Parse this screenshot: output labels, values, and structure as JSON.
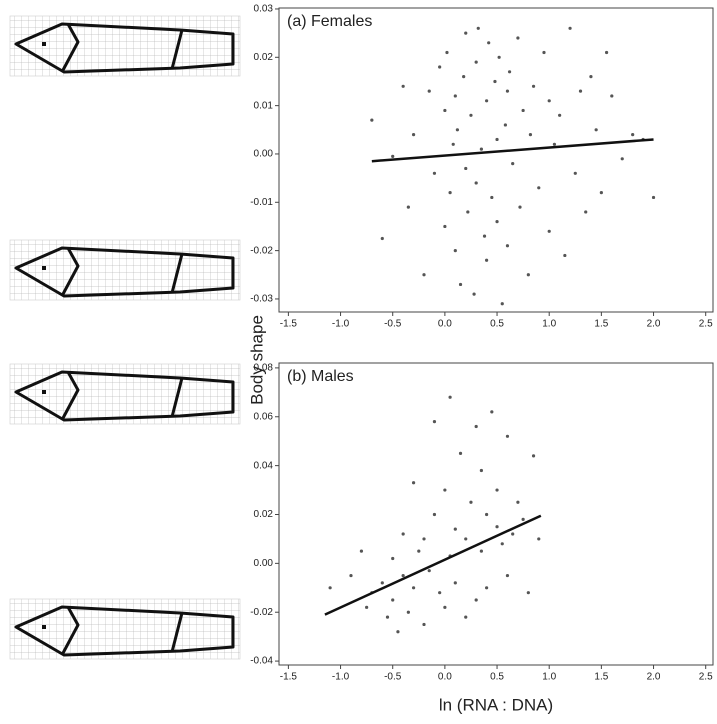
{
  "chart_data": [
    {
      "type": "scatter",
      "title": "(a)  Females",
      "y_label": "Body shape",
      "xlim": [
        -1.59,
        2.57
      ],
      "ylim": [
        -0.0327,
        0.0302
      ],
      "xticks": [
        -1.5,
        {
          "value": -1,
          "label": "-1.0"
        },
        -0.5,
        {
          "value": 0,
          "label": "0.0"
        },
        0.5,
        {
          "value": 1,
          "label": "1.0"
        },
        1.5,
        {
          "value": 2,
          "label": "2.0"
        },
        2.5
      ],
      "yticks": [
        0.03,
        0.02,
        0.01,
        {
          "value": 0,
          "label": "0.00"
        },
        -0.01,
        -0.02,
        -0.03
      ],
      "color": "#555555",
      "grid": false,
      "x": [
        -0.7,
        -0.6,
        -0.5,
        -0.4,
        -0.35,
        -0.3,
        -0.2,
        -0.15,
        -0.1,
        -0.05,
        0,
        0,
        0.02,
        0.05,
        0.08,
        0.1,
        0.1,
        0.12,
        0.15,
        0.18,
        0.2,
        0.2,
        0.22,
        0.25,
        0.28,
        0.3,
        0.3,
        0.32,
        0.35,
        0.38,
        0.4,
        0.4,
        0.42,
        0.45,
        0.48,
        0.5,
        0.5,
        0.52,
        0.55,
        0.58,
        0.6,
        0.6,
        0.62,
        0.65,
        0.7,
        0.72,
        0.75,
        0.8,
        0.82,
        0.85,
        0.9,
        0.95,
        1.0,
        1.0,
        1.05,
        1.1,
        1.15,
        1.2,
        1.25,
        1.3,
        1.35,
        1.4,
        1.45,
        1.5,
        1.55,
        1.6,
        1.7,
        1.8,
        1.9,
        2.0
      ],
      "values": [
        0.007,
        -0.0175,
        -0.0005,
        0.014,
        -0.011,
        0.004,
        -0.025,
        0.013,
        -0.004,
        0.018,
        0.009,
        -0.015,
        0.021,
        -0.008,
        0.002,
        0.012,
        -0.02,
        0.005,
        -0.027,
        0.016,
        -0.003,
        0.025,
        -0.012,
        0.008,
        -0.029,
        0.019,
        -0.006,
        0.026,
        0.001,
        -0.017,
        0.011,
        -0.022,
        0.023,
        -0.009,
        0.015,
        0.003,
        -0.014,
        0.02,
        -0.031,
        0.006,
        0.013,
        -0.019,
        0.017,
        -0.002,
        0.024,
        -0.011,
        0.009,
        -0.025,
        0.004,
        0.014,
        -0.007,
        0.021,
        0.011,
        -0.016,
        0.002,
        0.008,
        -0.021,
        0.026,
        -0.004,
        0.013,
        -0.012,
        0.016,
        0.005,
        -0.008,
        0.021,
        0.012,
        -0.001,
        0.004,
        0.003,
        -0.009
      ],
      "fit": {
        "x": [
          -0.7,
          2.0
        ],
        "values": [
          -0.0015,
          0.003
        ],
        "color": "#111111"
      }
    },
    {
      "type": "scatter",
      "title": "(b)  Males",
      "x_label": "ln (RNA : DNA)",
      "xlim": [
        -1.59,
        2.57
      ],
      "ylim": [
        -0.0416,
        0.082
      ],
      "xticks": [
        -1.5,
        {
          "value": -1,
          "label": "-1.0"
        },
        -0.5,
        {
          "value": 0,
          "label": "0.0"
        },
        0.5,
        {
          "value": 1,
          "label": "1.0"
        },
        1.5,
        {
          "value": 2,
          "label": "2.0"
        },
        2.5
      ],
      "yticks": [
        0.08,
        0.06,
        0.04,
        0.02,
        {
          "value": 0,
          "label": "0.00"
        },
        -0.02,
        -0.04
      ],
      "color": "#555555",
      "grid": false,
      "x": [
        -1.1,
        -0.9,
        -0.8,
        -0.75,
        -0.7,
        -0.6,
        -0.55,
        -0.5,
        -0.5,
        -0.45,
        -0.4,
        -0.4,
        -0.35,
        -0.3,
        -0.3,
        -0.25,
        -0.2,
        -0.2,
        -0.15,
        -0.1,
        -0.1,
        -0.05,
        0,
        0,
        0.05,
        0.05,
        0.1,
        0.1,
        0.15,
        0.2,
        0.2,
        0.25,
        0.3,
        0.3,
        0.35,
        0.35,
        0.4,
        0.4,
        0.45,
        0.5,
        0.5,
        0.55,
        0.6,
        0.6,
        0.65,
        0.7,
        0.75,
        0.8,
        0.85,
        0.9
      ],
      "values": [
        -0.01,
        -0.005,
        0.005,
        -0.018,
        -0.012,
        -0.008,
        -0.022,
        -0.015,
        0.002,
        -0.028,
        -0.005,
        0.012,
        -0.02,
        0.033,
        -0.01,
        0.005,
        -0.025,
        0.01,
        -0.003,
        0.058,
        0.02,
        -0.012,
        0.03,
        -0.018,
        0.003,
        0.068,
        -0.008,
        0.014,
        0.045,
        -0.022,
        0.01,
        0.025,
        0.056,
        -0.015,
        0.005,
        0.038,
        0.02,
        -0.01,
        0.062,
        0.015,
        0.03,
        0.008,
        0.052,
        -0.005,
        0.012,
        0.025,
        0.018,
        -0.012,
        0.044,
        0.01
      ],
      "fit": {
        "x": [
          -1.15,
          0.92
        ],
        "values": [
          -0.021,
          0.0195
        ],
        "color": "#111111"
      }
    }
  ]
}
